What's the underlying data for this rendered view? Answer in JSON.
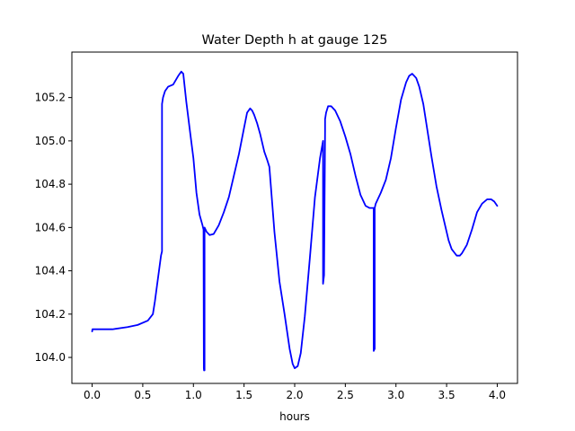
{
  "chart_data": {
    "type": "line",
    "title": "Water Depth h at gauge 125",
    "xlabel": "hours",
    "ylabel": "",
    "xlim": [
      -0.2,
      4.2
    ],
    "ylim": [
      103.88,
      105.41
    ],
    "xticks": [
      0.0,
      0.5,
      1.0,
      1.5,
      2.0,
      2.5,
      3.0,
      3.5,
      4.0
    ],
    "xtick_labels": [
      "0.0",
      "0.5",
      "1.0",
      "1.5",
      "2.0",
      "2.5",
      "3.0",
      "3.5",
      "4.0"
    ],
    "yticks": [
      104.0,
      104.2,
      104.4,
      104.6,
      104.8,
      105.0,
      105.2
    ],
    "ytick_labels": [
      "104.0",
      "104.2",
      "104.4",
      "104.6",
      "104.8",
      "105.0",
      "105.2"
    ],
    "grid": false,
    "line_color": "#0000ff",
    "series": [
      {
        "x": [
          0.0,
          0.003,
          0.05,
          0.2,
          0.35,
          0.45,
          0.55,
          0.6,
          0.62,
          0.64,
          0.66,
          0.68,
          0.69,
          0.69,
          0.7,
          0.72,
          0.75,
          0.8,
          0.85,
          0.88,
          0.9,
          0.93,
          0.97,
          1.0,
          1.03,
          1.06,
          1.09,
          1.1,
          1.103,
          1.105,
          1.11,
          1.11,
          1.13,
          1.16,
          1.2,
          1.25,
          1.3,
          1.35,
          1.4,
          1.45,
          1.5,
          1.53,
          1.56,
          1.58,
          1.6,
          1.63,
          1.66,
          1.7,
          1.73,
          1.75,
          1.78,
          1.8,
          1.85,
          1.9,
          1.95,
          1.98,
          2.0,
          2.03,
          2.06,
          2.1,
          2.15,
          2.2,
          2.25,
          2.28,
          2.28,
          2.29,
          2.3,
          2.3,
          2.31,
          2.33,
          2.36,
          2.4,
          2.45,
          2.5,
          2.55,
          2.6,
          2.65,
          2.7,
          2.74,
          2.77,
          2.78,
          2.78,
          2.79,
          2.79,
          2.8,
          2.85,
          2.9,
          2.95,
          3.0,
          3.05,
          3.1,
          3.13,
          3.16,
          3.18,
          3.2,
          3.23,
          3.27,
          3.3,
          3.35,
          3.4,
          3.45,
          3.5,
          3.52,
          3.55,
          3.6,
          3.63,
          3.65,
          3.7,
          3.75,
          3.8,
          3.85,
          3.9,
          3.94,
          3.97,
          4.0
        ],
        "y": [
          104.12,
          104.13,
          104.13,
          104.13,
          104.14,
          104.15,
          104.17,
          104.2,
          104.26,
          104.33,
          104.4,
          104.47,
          104.49,
          105.17,
          105.2,
          105.23,
          105.25,
          105.26,
          105.3,
          105.32,
          105.31,
          105.18,
          105.03,
          104.92,
          104.76,
          104.66,
          104.61,
          104.59,
          103.95,
          103.94,
          103.94,
          104.6,
          104.58,
          104.565,
          104.57,
          104.61,
          104.67,
          104.74,
          104.84,
          104.94,
          105.06,
          105.13,
          105.15,
          105.14,
          105.12,
          105.08,
          105.03,
          104.95,
          104.91,
          104.88,
          104.7,
          104.58,
          104.35,
          104.2,
          104.04,
          103.97,
          103.95,
          103.96,
          104.02,
          104.19,
          104.46,
          104.74,
          104.92,
          105.0,
          104.34,
          104.38,
          105.05,
          105.1,
          105.13,
          105.16,
          105.16,
          105.14,
          105.09,
          105.02,
          104.94,
          104.84,
          104.75,
          104.7,
          104.69,
          104.69,
          104.69,
          104.03,
          104.04,
          104.69,
          104.71,
          104.76,
          104.82,
          104.92,
          105.06,
          105.19,
          105.27,
          105.3,
          105.31,
          105.3,
          105.29,
          105.25,
          105.17,
          105.08,
          104.93,
          104.79,
          104.68,
          104.58,
          104.54,
          104.5,
          104.47,
          104.47,
          104.48,
          104.52,
          104.59,
          104.67,
          104.71,
          104.73,
          104.73,
          104.72,
          104.7
        ]
      }
    ]
  }
}
